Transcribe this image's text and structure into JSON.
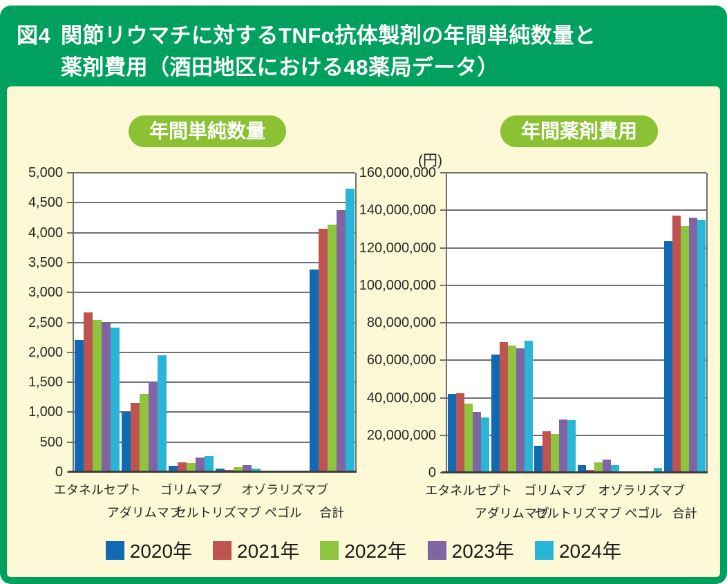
{
  "title": {
    "prefix": "図4",
    "line1": "関節リウマチに対するTNFα抗体製剤の年間単純数量と",
    "line2": "薬剤費用（酒田地区における48薬局データ）"
  },
  "colors": {
    "header_green": "#00a15f",
    "badge_green": "#8bc234",
    "panel_cream": "#fdf8d6",
    "gridline": "#6f6f6f",
    "baseline": "#3d3d3d"
  },
  "legend": [
    {
      "label": "2020年",
      "color": "#1169b4"
    },
    {
      "label": "2021年",
      "color": "#bf5350"
    },
    {
      "label": "2022年",
      "color": "#8dc53e"
    },
    {
      "label": "2023年",
      "color": "#8064a4"
    },
    {
      "label": "2024年",
      "color": "#29b6d6"
    }
  ],
  "chart_data": [
    {
      "type": "bar",
      "title": "年間単純数量",
      "unit_label": "",
      "categories": [
        "エタネルセプト",
        "アダリムマブ",
        "ゴリムマブ",
        "セルトリズマブ ペゴル",
        "オゾラリズマブ",
        "合計"
      ],
      "series": [
        {
          "name": "2020年",
          "color": "#1169b4",
          "values": [
            2200,
            1000,
            100,
            60,
            0,
            3380
          ]
        },
        {
          "name": "2021年",
          "color": "#bf5350",
          "values": [
            2670,
            1160,
            160,
            30,
            0,
            4070
          ]
        },
        {
          "name": "2022年",
          "color": "#8dc53e",
          "values": [
            2540,
            1300,
            155,
            80,
            0,
            4130
          ]
        },
        {
          "name": "2023年",
          "color": "#8064a4",
          "values": [
            2480,
            1500,
            240,
            120,
            0,
            4380
          ]
        },
        {
          "name": "2024年",
          "color": "#29b6d6",
          "values": [
            2410,
            1950,
            260,
            60,
            15,
            4740
          ]
        }
      ],
      "ylim": [
        0,
        5000
      ],
      "ytick_step": 500,
      "grid": true,
      "legend_position": "bottom-shared"
    },
    {
      "type": "bar",
      "title": "年間薬剤費用",
      "unit_label": "(円)",
      "categories": [
        "エタネルセプト",
        "アダリムマブ",
        "ゴリムマブ",
        "セルトリズマブ ペゴル",
        "オゾラリズマブ",
        "合計"
      ],
      "series": [
        {
          "name": "2020年",
          "color": "#1169b4",
          "values": [
            42000000,
            63000000,
            14500000,
            4000000,
            0,
            123500000
          ]
        },
        {
          "name": "2021年",
          "color": "#bf5350",
          "values": [
            42500000,
            69500000,
            22000000,
            1500000,
            0,
            137000000
          ]
        },
        {
          "name": "2022年",
          "color": "#8dc53e",
          "values": [
            37000000,
            68000000,
            20500000,
            5500000,
            0,
            131500000
          ]
        },
        {
          "name": "2023年",
          "color": "#8064a4",
          "values": [
            32500000,
            66500000,
            28500000,
            7000000,
            0,
            136000000
          ]
        },
        {
          "name": "2024年",
          "color": "#29b6d6",
          "values": [
            29500000,
            70500000,
            28000000,
            4000000,
            2500000,
            135000000
          ]
        }
      ],
      "ylim": [
        0,
        160000000
      ],
      "ytick_step": 20000000,
      "grid": true,
      "legend_position": "bottom-shared"
    }
  ]
}
